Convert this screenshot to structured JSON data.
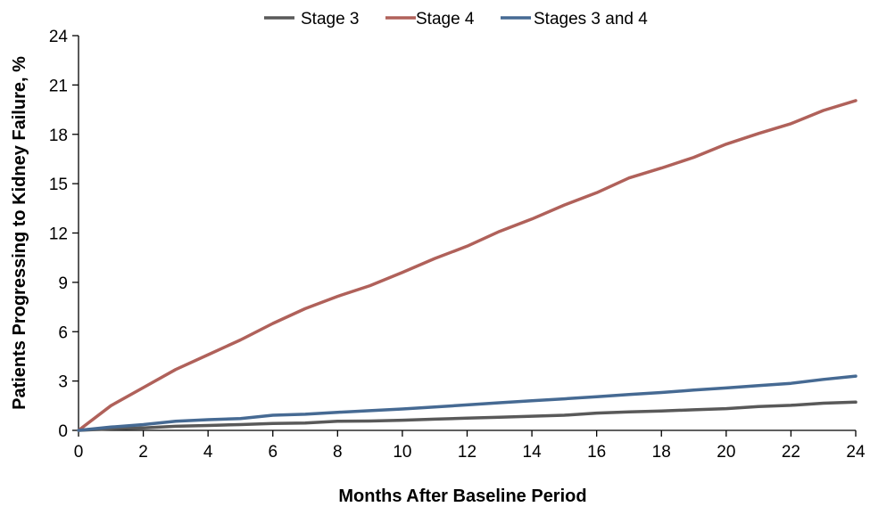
{
  "chart_data": {
    "type": "line",
    "xlabel": "Months After Baseline Period",
    "ylabel": "Patients Progressing to Kidney Failure, %",
    "xlim": [
      0,
      24
    ],
    "ylim": [
      0,
      24
    ],
    "x_ticks": [
      0,
      2,
      4,
      6,
      8,
      10,
      12,
      14,
      16,
      18,
      20,
      22,
      24
    ],
    "y_ticks": [
      0,
      3,
      6,
      9,
      12,
      15,
      18,
      21,
      24
    ],
    "grid": false,
    "legend_position": "top",
    "x": [
      0,
      1,
      2,
      3,
      4,
      5,
      6,
      7,
      8,
      9,
      10,
      11,
      12,
      13,
      14,
      15,
      16,
      17,
      18,
      19,
      20,
      21,
      22,
      23,
      24
    ],
    "series": [
      {
        "name": "Stage 3",
        "color": "#595959",
        "values": [
          0,
          0.1,
          0.15,
          0.25,
          0.3,
          0.35,
          0.42,
          0.45,
          0.55,
          0.57,
          0.62,
          0.68,
          0.74,
          0.8,
          0.86,
          0.92,
          1.05,
          1.12,
          1.18,
          1.25,
          1.32,
          1.45,
          1.52,
          1.65,
          1.72
        ]
      },
      {
        "name": "Stage 4",
        "color": "#b0615a",
        "values": [
          0,
          1.5,
          2.6,
          3.7,
          4.6,
          5.5,
          6.5,
          7.4,
          8.15,
          8.8,
          9.6,
          10.45,
          11.2,
          12.1,
          12.85,
          13.7,
          14.45,
          15.35,
          15.95,
          16.6,
          17.4,
          18.05,
          18.65,
          19.45,
          20.05
        ]
      },
      {
        "name": "Stages 3 and 4",
        "color": "#466a93",
        "values": [
          0,
          0.2,
          0.35,
          0.55,
          0.65,
          0.72,
          0.92,
          0.98,
          1.1,
          1.2,
          1.3,
          1.42,
          1.55,
          1.68,
          1.8,
          1.92,
          2.05,
          2.18,
          2.3,
          2.45,
          2.58,
          2.72,
          2.86,
          3.1,
          3.3
        ]
      }
    ]
  }
}
